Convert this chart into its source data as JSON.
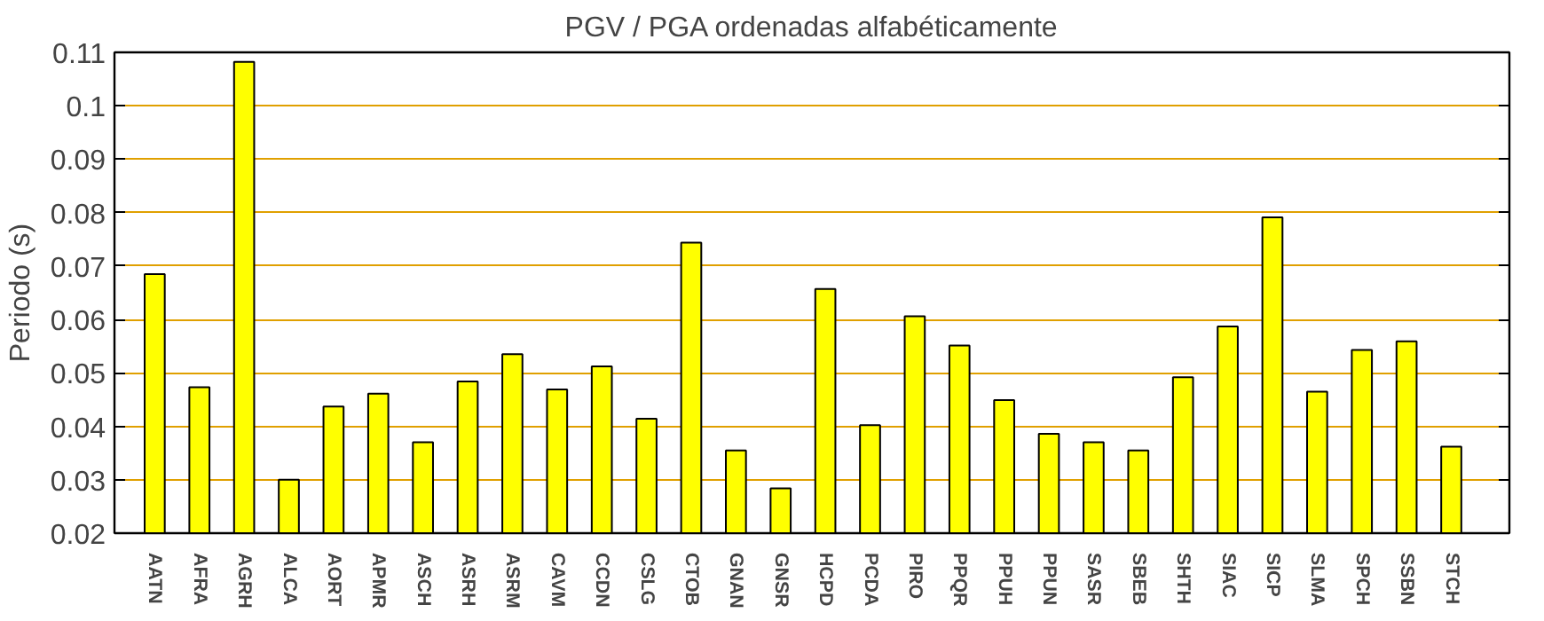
{
  "chart_data": {
    "type": "bar",
    "title": "PGV / PGA ordenadas alfabéticamente",
    "ylabel": "Periodo (s)",
    "categories": [
      "AATN",
      "AFRA",
      "AGRH",
      "ALCA",
      "AORT",
      "APMR",
      "ASCH",
      "ASRH",
      "ASRM",
      "CAVM",
      "CCDN",
      "CSLG",
      "CTOB",
      "GNAN",
      "GNSR",
      "HCPD",
      "PCDA",
      "PIRO",
      "PPQR",
      "PPUH",
      "PPUN",
      "SASR",
      "SBEB",
      "SHTH",
      "SIAC",
      "SICP",
      "SLMA",
      "SPCH",
      "SSBN",
      "STCH"
    ],
    "values": [
      0.0685,
      0.0473,
      0.1082,
      0.03,
      0.0437,
      0.0461,
      0.037,
      0.0484,
      0.0535,
      0.0469,
      0.0512,
      0.0414,
      0.0744,
      0.0355,
      0.0284,
      0.0657,
      0.0402,
      0.0606,
      0.0551,
      0.0449,
      0.0386,
      0.037,
      0.0355,
      0.0492,
      0.0587,
      0.0791,
      0.0465,
      0.0543,
      0.0559,
      0.0362
    ],
    "color": "#ffff00",
    "ylim": [
      0.02,
      0.11
    ],
    "yticks": [
      0.02,
      0.03,
      0.04,
      0.05,
      0.06,
      0.07,
      0.08,
      0.09,
      0.1,
      0.11
    ],
    "grid": "y"
  }
}
